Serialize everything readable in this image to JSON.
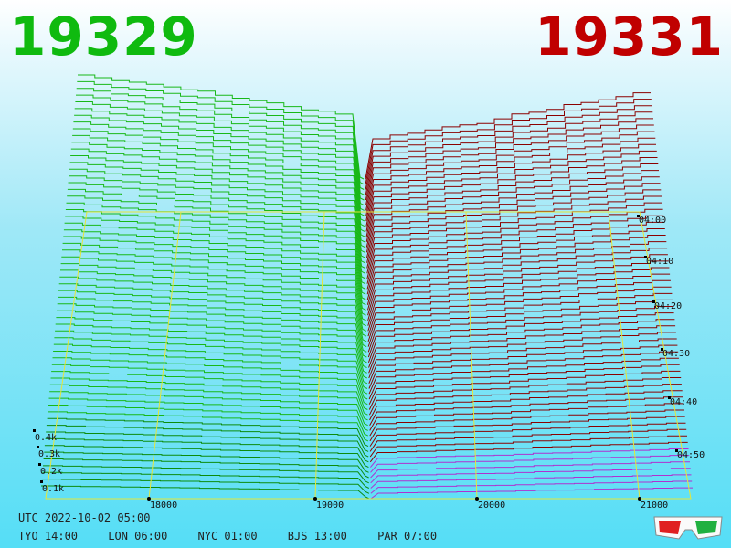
{
  "header": {
    "left_price": "19329",
    "right_price": "19331",
    "left_color": "#0fba0f",
    "right_color": "#c00000"
  },
  "footer": {
    "utc": "UTC 2022-10-02 05:00",
    "timezones": [
      "TYO 14:00",
      "LON 06:00",
      "NYC 01:00",
      "BJS 13:00",
      "PAR 07:00"
    ]
  },
  "icons": {
    "glasses": "3d-glasses-icon"
  },
  "chart_data": {
    "type": "area",
    "x_ticks": [
      "18000",
      "19000",
      "20000",
      "21000"
    ],
    "depth_ticks": [
      "0.1k",
      "0.2k",
      "0.3k",
      "0.4k"
    ],
    "time_ticks": [
      "04:00",
      "04:10",
      "04:20",
      "04:30",
      "04:40",
      "04:50"
    ],
    "series": [
      {
        "name": "19329",
        "color": "#18a818"
      },
      {
        "name": "19331",
        "color": "#8b0000"
      }
    ],
    "grid": true
  }
}
